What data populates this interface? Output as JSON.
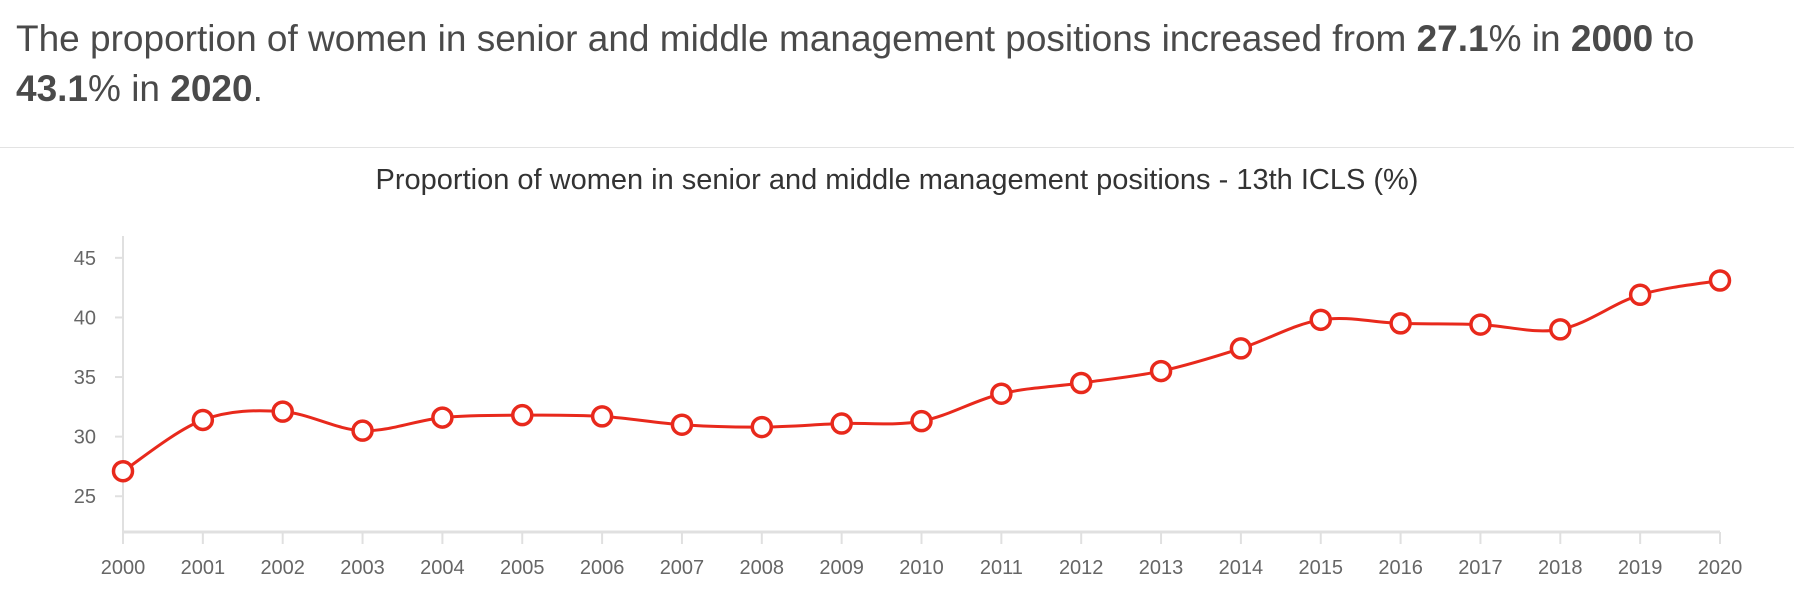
{
  "summary": {
    "pre": "The proportion of women in senior and middle management positions increased from ",
    "start_value": "27.1",
    "mid1": "% in ",
    "start_year": "2000",
    "mid2": " to ",
    "end_value": "43.1",
    "mid3": "% in ",
    "end_year": "2020",
    "post": "."
  },
  "chart_data": {
    "type": "line",
    "title": "Proportion of women in senior and middle management positions - 13th ICLS (%)",
    "xlabel": "",
    "ylabel": "",
    "ylim": [
      22,
      47
    ],
    "yticks": [
      25,
      30,
      35,
      40,
      45
    ],
    "grid": false,
    "legend": "none",
    "color": "#e8291c",
    "categories": [
      "2000",
      "2001",
      "2002",
      "2003",
      "2004",
      "2005",
      "2006",
      "2007",
      "2008",
      "2009",
      "2010",
      "2011",
      "2012",
      "2013",
      "2014",
      "2015",
      "2016",
      "2017",
      "2018",
      "2019",
      "2020"
    ],
    "series": [
      {
        "values": [
          27.1,
          31.4,
          32.1,
          30.5,
          31.6,
          31.8,
          31.7,
          31.0,
          30.8,
          31.1,
          31.3,
          33.6,
          34.5,
          35.5,
          37.4,
          39.8,
          39.5,
          39.4,
          39.0,
          41.9,
          43.1
        ]
      }
    ]
  }
}
